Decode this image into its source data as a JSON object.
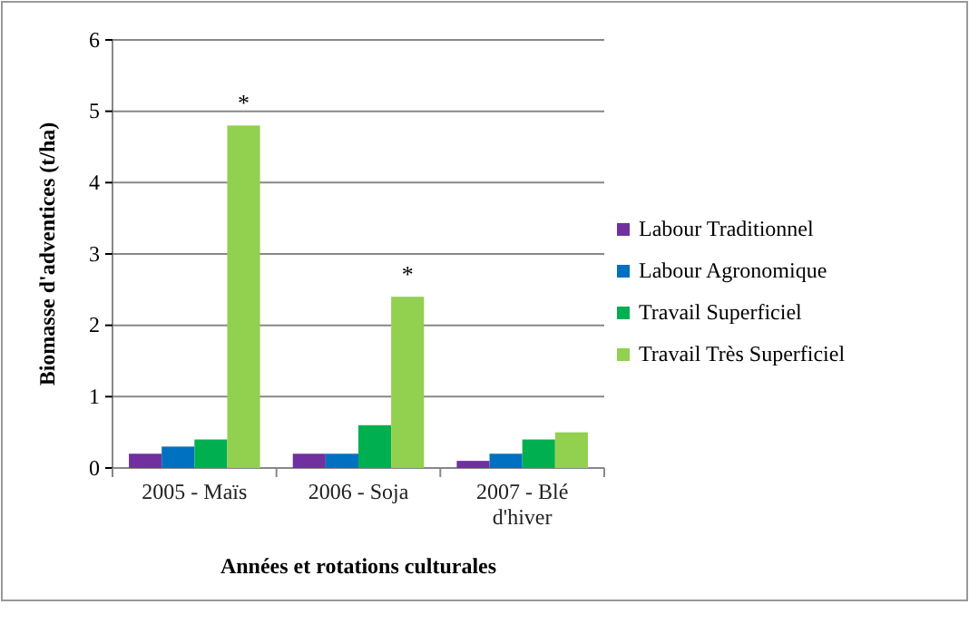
{
  "chart_data": {
    "type": "bar",
    "xlabel": "Années et rotations culturales",
    "ylabel": "Biomasse d'adventices (t/ha)",
    "categories": [
      "2005 - Maïs",
      "2006 - Soja",
      "2007 - Blé d'hiver"
    ],
    "series": [
      {
        "name": "Labour Traditionnel",
        "color": "#7030a0",
        "values": [
          0.2,
          0.2,
          0.1
        ]
      },
      {
        "name": "Labour Agronomique",
        "color": "#0070c0",
        "values": [
          0.3,
          0.2,
          0.2
        ]
      },
      {
        "name": "Travail Superficiel",
        "color": "#00b050",
        "values": [
          0.4,
          0.6,
          0.4
        ]
      },
      {
        "name": "Travail Très Superficiel",
        "color": "#92d050",
        "values": [
          4.8,
          2.4,
          0.5
        ]
      }
    ],
    "ylim": [
      0,
      6
    ],
    "yticks": [
      0,
      1,
      2,
      3,
      4,
      5,
      6
    ],
    "grid": "y",
    "legend": "right",
    "annotations": [
      "*",
      "*"
    ]
  }
}
